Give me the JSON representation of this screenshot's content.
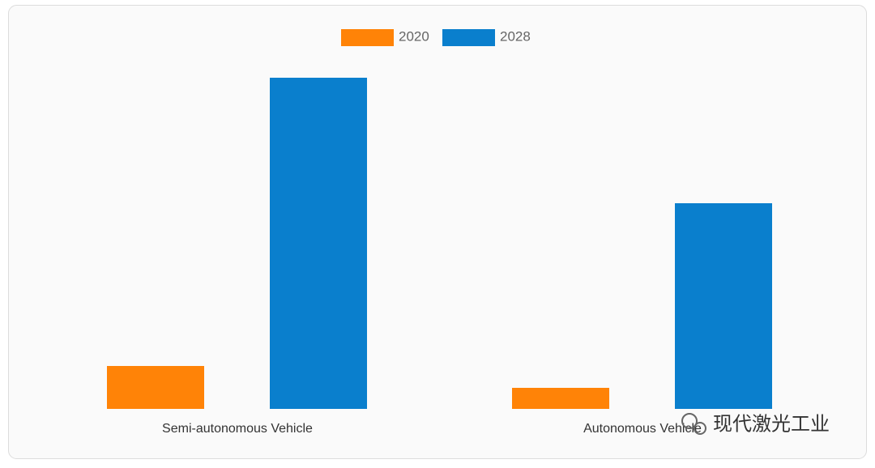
{
  "chart_data": {
    "type": "bar",
    "categories": [
      "Semi-autonomous Vehicle",
      "Autonomous Vehicle"
    ],
    "series": [
      {
        "name": "2020",
        "color": "#ff8307",
        "values": [
          53,
          26
        ]
      },
      {
        "name": "2028",
        "color": "#0a7fcd",
        "values": [
          409,
          254
        ]
      }
    ]
  },
  "watermark": "现代激光工业"
}
